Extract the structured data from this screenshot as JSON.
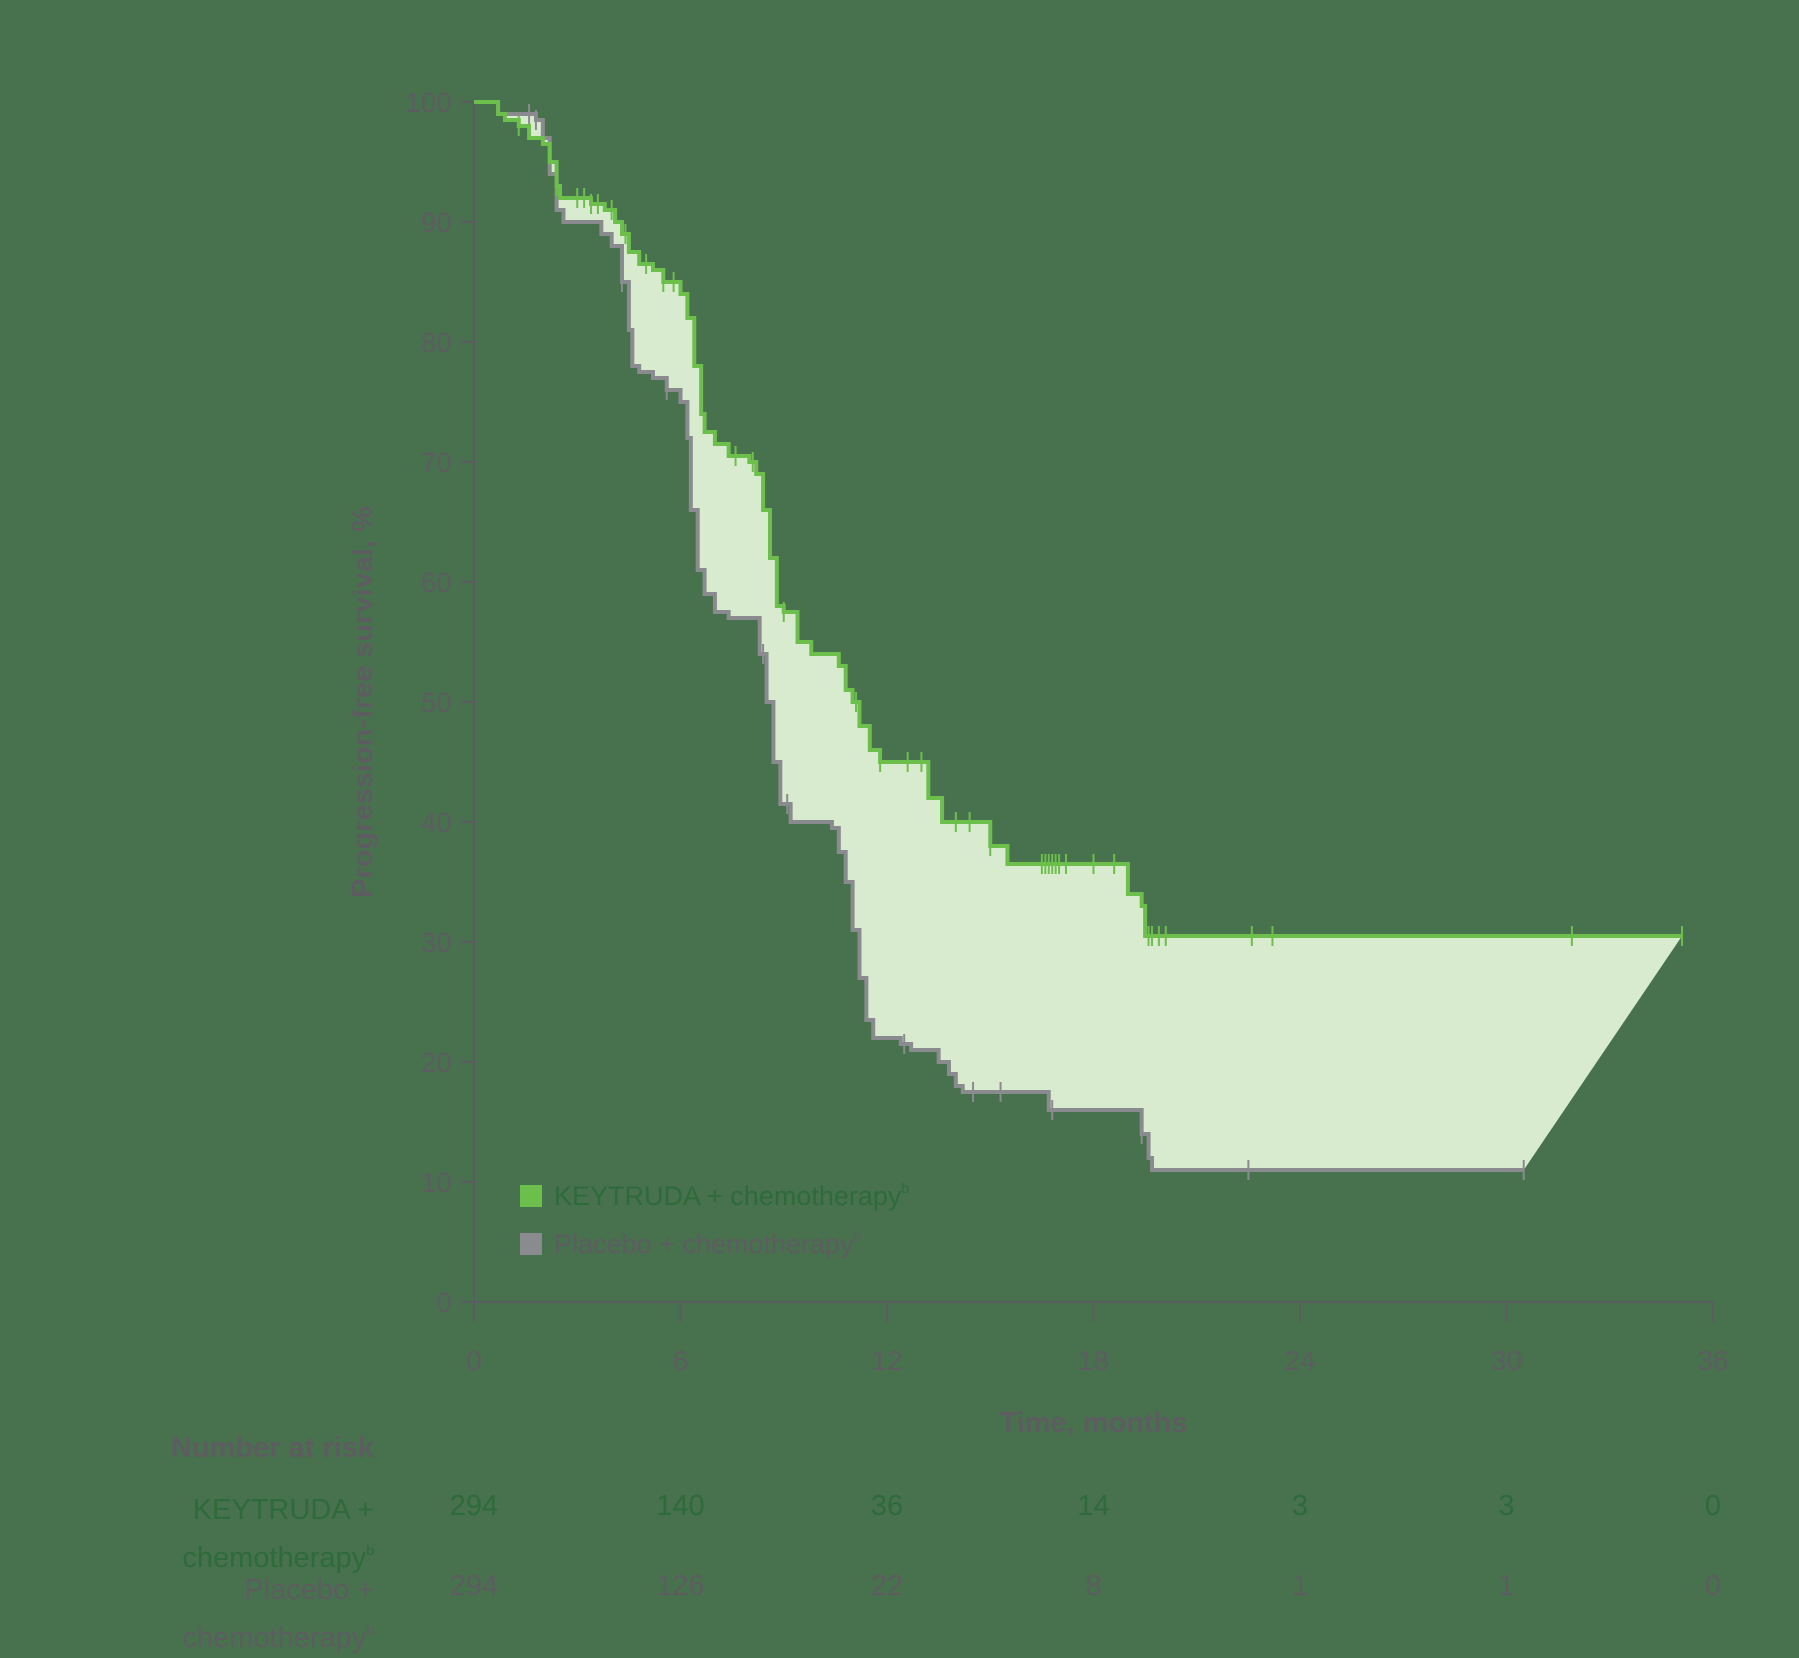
{
  "chart_data": {
    "type": "line",
    "subtype": "kaplan-meier",
    "title": "",
    "xlabel": "Time, months",
    "ylabel": "Progression-free survival, %",
    "xlim": [
      0,
      36
    ],
    "ylim": [
      0,
      100
    ],
    "xticks": [
      0,
      6,
      12,
      18,
      24,
      30,
      36
    ],
    "yticks": [
      0,
      10,
      20,
      30,
      40,
      50,
      60,
      70,
      80,
      90,
      100
    ],
    "grid": false,
    "legend_position": "lower-left inside",
    "series": [
      {
        "name": "KEYTRUDA + chemotherapy",
        "superscript": "b",
        "color": "#6cbf4b",
        "text_color": "#2e6b3a",
        "steps": [
          [
            0,
            100
          ],
          [
            0.6,
            100
          ],
          [
            0.7,
            99
          ],
          [
            0.9,
            98.5
          ],
          [
            1.3,
            98
          ],
          [
            1.6,
            97
          ],
          [
            2.0,
            96.5
          ],
          [
            2.2,
            95
          ],
          [
            2.4,
            93
          ],
          [
            2.5,
            92
          ],
          [
            3.0,
            92
          ],
          [
            3.4,
            91.5
          ],
          [
            3.8,
            91
          ],
          [
            4.1,
            90
          ],
          [
            4.3,
            89
          ],
          [
            4.5,
            87.5
          ],
          [
            4.8,
            86.5
          ],
          [
            5.2,
            86
          ],
          [
            5.5,
            85
          ],
          [
            6.0,
            84
          ],
          [
            6.2,
            82
          ],
          [
            6.4,
            78
          ],
          [
            6.6,
            74
          ],
          [
            6.7,
            72.5
          ],
          [
            7.0,
            71.5
          ],
          [
            7.4,
            70.5
          ],
          [
            8.0,
            70
          ],
          [
            8.2,
            69
          ],
          [
            8.4,
            66
          ],
          [
            8.6,
            62
          ],
          [
            8.8,
            58
          ],
          [
            9.0,
            57.5
          ],
          [
            9.4,
            55
          ],
          [
            9.8,
            54
          ],
          [
            10.4,
            54
          ],
          [
            10.6,
            53
          ],
          [
            10.8,
            51
          ],
          [
            11.0,
            50
          ],
          [
            11.2,
            48
          ],
          [
            11.5,
            46
          ],
          [
            11.8,
            45
          ],
          [
            13.0,
            45
          ],
          [
            13.2,
            42
          ],
          [
            13.6,
            40
          ],
          [
            14.8,
            40
          ],
          [
            15.0,
            38
          ],
          [
            15.5,
            36.5
          ],
          [
            18.8,
            36.5
          ],
          [
            19.0,
            34
          ],
          [
            19.4,
            33
          ],
          [
            19.5,
            30.5
          ],
          [
            35.1,
            30.5
          ]
        ],
        "censor_marks": [
          1.3,
          2.4,
          3.0,
          3.2,
          3.4,
          3.6,
          4.0,
          4.4,
          5.0,
          5.5,
          5.8,
          7.6,
          8.1,
          9.0,
          11.1,
          11.8,
          12.6,
          13.0,
          14.0,
          14.4,
          15.0,
          16.5,
          16.6,
          16.7,
          16.8,
          16.9,
          17.0,
          17.2,
          18.0,
          18.6,
          19.6,
          19.7,
          19.9,
          20.1,
          22.6,
          23.2,
          31.9,
          35.1
        ],
        "number_at_risk": [
          294,
          140,
          36,
          14,
          3,
          3,
          0
        ]
      },
      {
        "name": "Placebo + chemotherapy",
        "superscript": "b",
        "color": "#8a8b8f",
        "text_color": "#5d5d61",
        "steps": [
          [
            0,
            100
          ],
          [
            0.6,
            100
          ],
          [
            0.7,
            99
          ],
          [
            1.5,
            99
          ],
          [
            1.8,
            98.5
          ],
          [
            2.0,
            97
          ],
          [
            2.2,
            94
          ],
          [
            2.4,
            91
          ],
          [
            2.6,
            90
          ],
          [
            3.4,
            90
          ],
          [
            3.7,
            89
          ],
          [
            4.0,
            88
          ],
          [
            4.3,
            85
          ],
          [
            4.5,
            81
          ],
          [
            4.6,
            78
          ],
          [
            4.8,
            77.5
          ],
          [
            5.2,
            77
          ],
          [
            5.6,
            76
          ],
          [
            6.0,
            75
          ],
          [
            6.2,
            72
          ],
          [
            6.3,
            66
          ],
          [
            6.5,
            61
          ],
          [
            6.7,
            59
          ],
          [
            7.0,
            57.5
          ],
          [
            7.4,
            57
          ],
          [
            8.1,
            57
          ],
          [
            8.3,
            54
          ],
          [
            8.5,
            50
          ],
          [
            8.7,
            45
          ],
          [
            8.9,
            41.5
          ],
          [
            9.2,
            40
          ],
          [
            10.4,
            39.5
          ],
          [
            10.6,
            37.5
          ],
          [
            10.8,
            35
          ],
          [
            11.0,
            31
          ],
          [
            11.2,
            27
          ],
          [
            11.4,
            23.5
          ],
          [
            11.6,
            22
          ],
          [
            12.4,
            21.5
          ],
          [
            12.7,
            21
          ],
          [
            13.5,
            20
          ],
          [
            13.8,
            19
          ],
          [
            14.0,
            18
          ],
          [
            14.2,
            17.5
          ],
          [
            16.6,
            17.5
          ],
          [
            16.7,
            16
          ],
          [
            19.3,
            16
          ],
          [
            19.4,
            14
          ],
          [
            19.6,
            12
          ],
          [
            19.7,
            11
          ],
          [
            30.5,
            11
          ]
        ],
        "censor_marks": [
          1.6,
          1.8,
          4.3,
          5.6,
          8.4,
          9.1,
          12.5,
          14.5,
          15.3,
          16.8,
          19.4,
          22.5,
          30.5
        ],
        "number_at_risk": [
          294,
          126,
          22,
          8,
          1,
          1,
          0
        ]
      }
    ],
    "shaded_region": {
      "between": [
        "KEYTRUDA + chemotherapy",
        "Placebo + chemotherapy"
      ],
      "color": "#d8ebcf",
      "end_point": [
        35.1,
        30.5
      ],
      "start_lower_end": [
        30.5,
        11
      ]
    }
  },
  "legend": {
    "items": [
      {
        "label": "KEYTRUDA + chemotherapy",
        "sup": "b",
        "color": "#6cbf4b",
        "text_color": "#2e6b3a"
      },
      {
        "label": "Placebo + chemotherapy",
        "sup": "b",
        "color": "#8a8b8f",
        "text_color": "#5d5d61"
      }
    ]
  },
  "risk_table": {
    "title": "Number at risk",
    "rows": [
      {
        "label_line1": "KEYTRUDA +",
        "label_line2": "chemotherapy",
        "sup": "b",
        "color": "#2e6b3a",
        "values": [
          "294",
          "140",
          "36",
          "14",
          "3",
          "3",
          "0"
        ]
      },
      {
        "label_line1": "Placebo +",
        "label_line2": "chemotherapy",
        "sup": "b",
        "color": "#5d5d61",
        "values": [
          "294",
          "126",
          "22",
          "8",
          "1",
          "1",
          "0"
        ]
      }
    ]
  },
  "colors": {
    "background": "#48714e",
    "axis": "#5d5d61",
    "fill": "#d8ebcf"
  }
}
